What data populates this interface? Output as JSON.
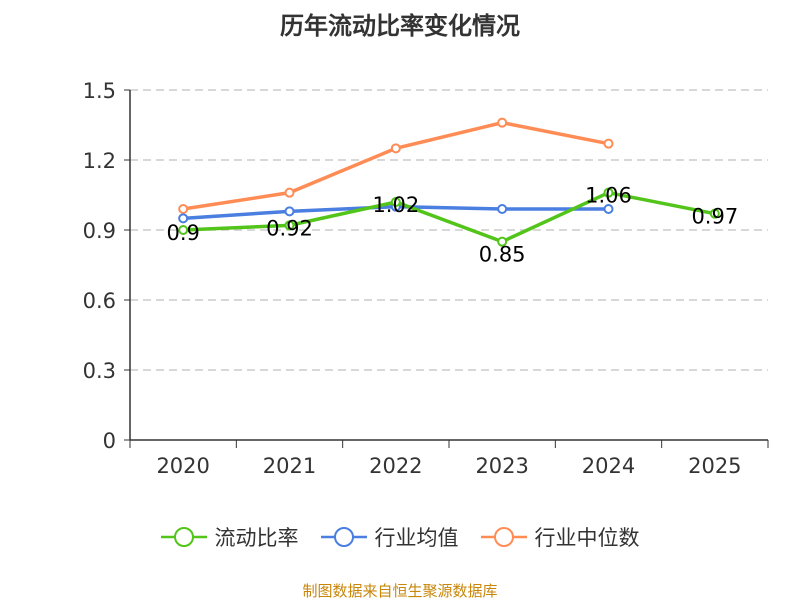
{
  "chart_data": {
    "type": "line",
    "title": "历年流动比率变化情况",
    "categories": [
      "2020",
      "2021",
      "2022",
      "2023",
      "2024",
      "2025"
    ],
    "ylim": [
      0,
      1.5
    ],
    "yticks": [
      "0",
      "0.3",
      "0.6",
      "0.9",
      "1.2",
      "1.5"
    ],
    "series": [
      {
        "name": "流动比率",
        "color": "#52c41a",
        "values": [
          0.9,
          0.92,
          1.02,
          0.85,
          1.06,
          0.97
        ],
        "labels": [
          "0.9",
          "0.92",
          "1.02",
          "0.85",
          "1.06",
          "0.97"
        ]
      },
      {
        "name": "行业均值",
        "color": "#4a7ee0",
        "values": [
          0.95,
          0.98,
          1.0,
          0.99,
          0.99,
          null
        ]
      },
      {
        "name": "行业中位数",
        "color": "#ff8c55",
        "values": [
          0.99,
          1.06,
          1.25,
          1.36,
          1.27,
          null
        ]
      }
    ],
    "legend": "bottom",
    "grid": true
  },
  "source": "制图数据来自恒生聚源数据库"
}
